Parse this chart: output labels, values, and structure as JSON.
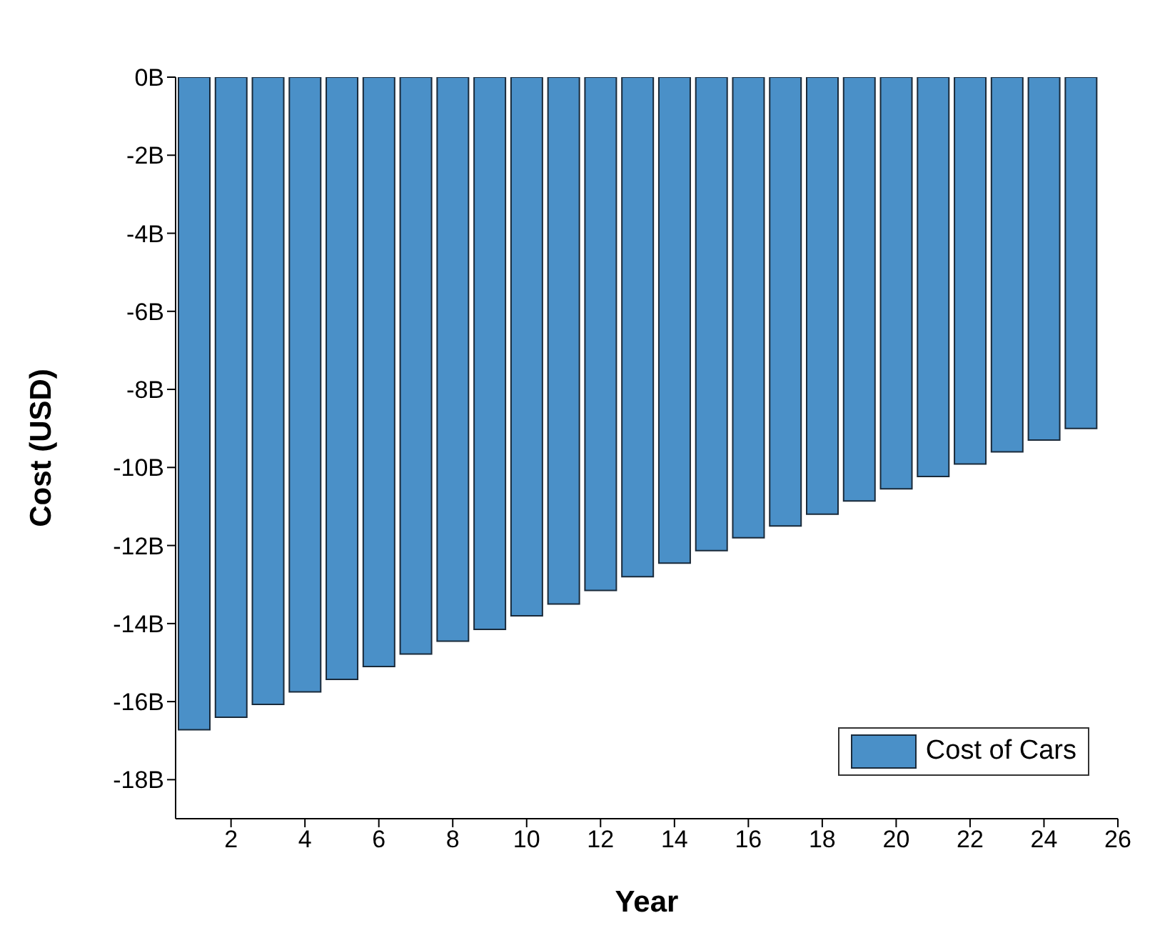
{
  "chart_data": {
    "type": "bar",
    "xlabel": "Year",
    "ylabel": "Cost (USD)",
    "x": [
      1,
      2,
      3,
      4,
      5,
      6,
      7,
      8,
      9,
      10,
      11,
      12,
      13,
      14,
      15,
      16,
      17,
      18,
      19,
      20,
      21,
      22,
      23,
      24,
      25
    ],
    "series": [
      {
        "name": "Cost of Cars",
        "color": "#4a90c8",
        "values": [
          -16.72,
          -16.4,
          -16.07,
          -15.75,
          -15.43,
          -15.1,
          -14.78,
          -14.45,
          -14.15,
          -13.8,
          -13.5,
          -13.15,
          -12.8,
          -12.45,
          -12.13,
          -11.8,
          -11.5,
          -11.2,
          -10.86,
          -10.55,
          -10.23,
          -9.91,
          -9.6,
          -9.3,
          -9.0
        ]
      }
    ],
    "xlim": [
      0.5,
      26
    ],
    "xticks": [
      2,
      4,
      6,
      8,
      10,
      12,
      14,
      16,
      18,
      20,
      22,
      24,
      26
    ],
    "ylim": [
      -19,
      0
    ],
    "yticks": [
      {
        "value": 0,
        "label": "0B"
      },
      {
        "value": -2,
        "label": "-2B"
      },
      {
        "value": -4,
        "label": "-4B"
      },
      {
        "value": -6,
        "label": "-6B"
      },
      {
        "value": -8,
        "label": "-8B"
      },
      {
        "value": -10,
        "label": "-10B"
      },
      {
        "value": -12,
        "label": "-12B"
      },
      {
        "value": -14,
        "label": "-14B"
      },
      {
        "value": -16,
        "label": "-16B"
      },
      {
        "value": -18,
        "label": "-18B"
      }
    ],
    "grid": false,
    "legend": "bottom right"
  }
}
